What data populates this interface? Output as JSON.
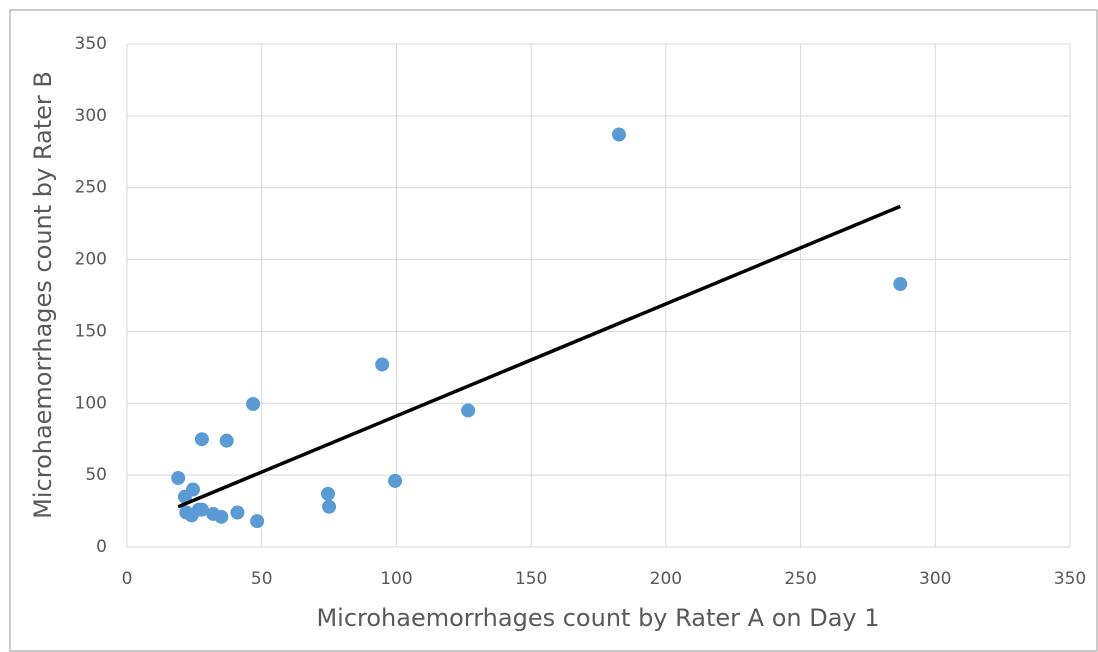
{
  "chart_data": {
    "type": "scatter",
    "x_label": "Microhaemorrhages count by Rater A on Day 1",
    "y_label": "Microhaemorrhages count by Rater B",
    "xlim": [
      0,
      350
    ],
    "ylim": [
      0,
      350
    ],
    "xticks": [
      0,
      50,
      100,
      150,
      200,
      250,
      300,
      350
    ],
    "yticks": [
      0,
      50,
      100,
      150,
      200,
      250,
      300,
      350
    ],
    "grid": true,
    "series": [
      {
        "color": "#5b9bd5",
        "x": [
          19,
          21.5,
          24.5,
          22,
          24,
          26.7,
          27.8,
          27.8,
          32,
          35,
          37,
          41,
          46.8,
          48.3,
          74.6,
          75,
          94.7,
          99.5,
          126.6,
          182.6,
          287
        ],
        "values": [
          48,
          35,
          40,
          24,
          22,
          26,
          75,
          26,
          23,
          21,
          74,
          24,
          99.5,
          18,
          37,
          28,
          127,
          46,
          95,
          287,
          183
        ]
      }
    ],
    "trendline": {
      "color": "#000000",
      "x": [
        19,
        287
      ],
      "values": [
        28,
        237
      ]
    }
  }
}
